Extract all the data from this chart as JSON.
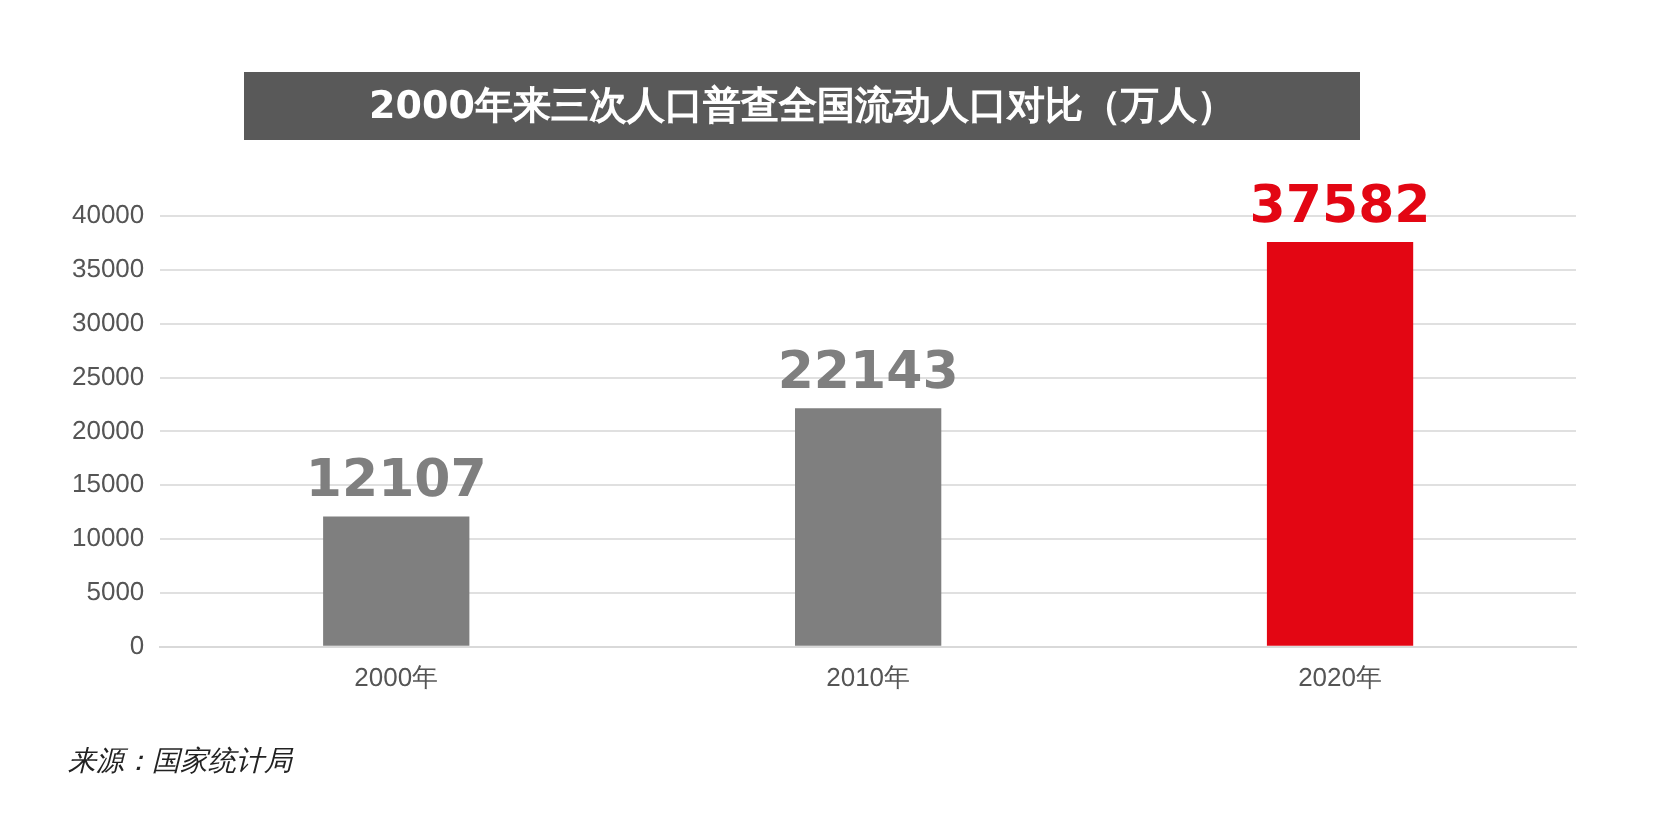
{
  "chart_data": {
    "type": "bar",
    "title": "2000年来三次人口普查全国流动人口对比（万人）",
    "categories": [
      "2000年",
      "2010年",
      "2020年"
    ],
    "values": [
      12107,
      22143,
      37582
    ],
    "colors": [
      "#7f7f7f",
      "#7f7f7f",
      "#e30613"
    ],
    "ylim": [
      0,
      40000
    ],
    "yticks": [
      0,
      5000,
      10000,
      15000,
      20000,
      25000,
      30000,
      35000,
      40000
    ],
    "grid": "y",
    "data_labels": true,
    "legend": false,
    "annotations": [
      "来源：国家统计局"
    ]
  }
}
